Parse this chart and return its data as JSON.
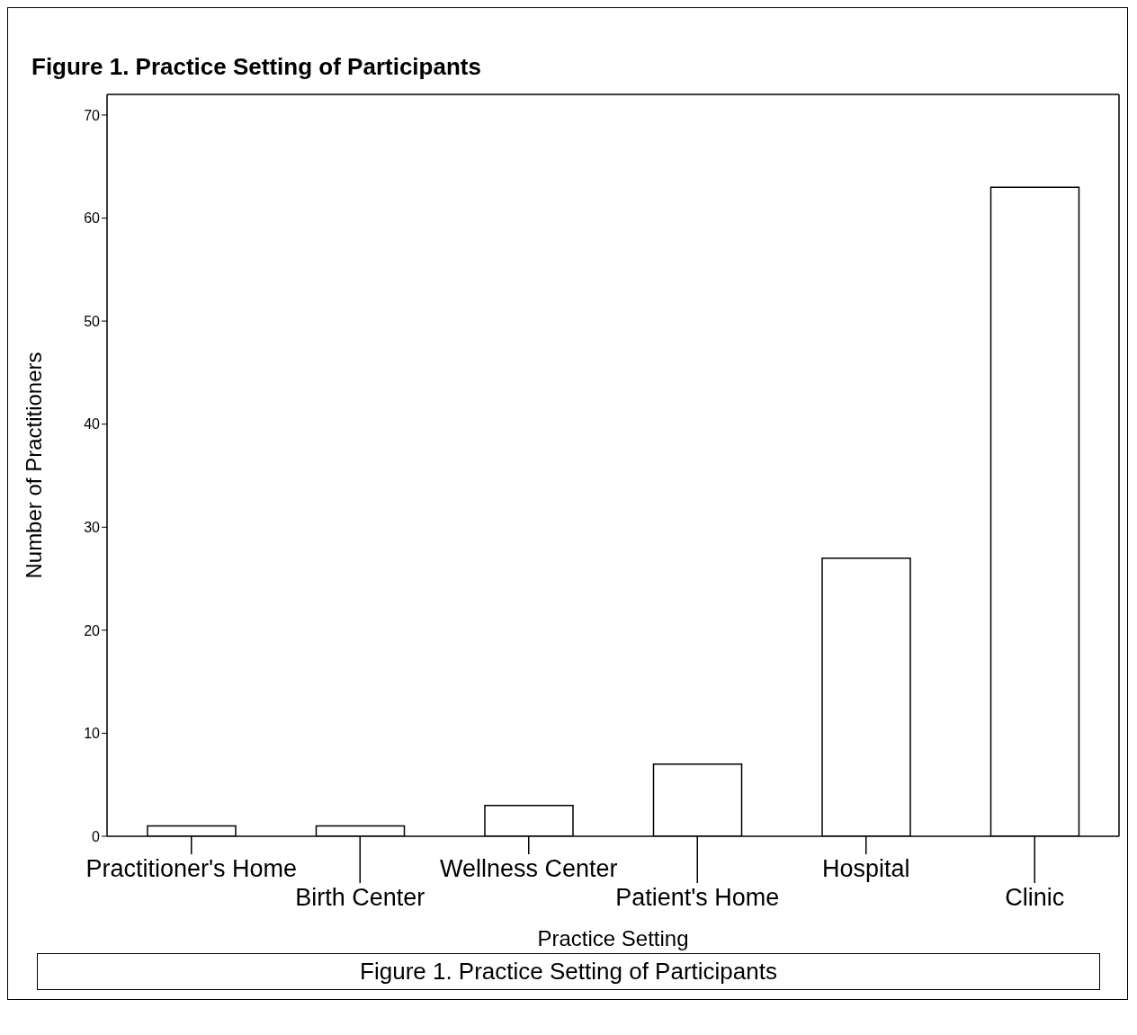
{
  "chart_data": {
    "type": "bar",
    "title": "Figure 1. Practice Setting of Participants",
    "xlabel": "Practice Setting",
    "ylabel": "Number of Practitioners",
    "categories": [
      "Practitioner's Home",
      "Birth Center",
      "Wellness Center",
      "Patient's Home",
      "Hospital",
      "Clinic"
    ],
    "values": [
      1,
      1,
      3,
      7,
      27,
      63
    ],
    "color": "#ffffff",
    "ylim": [
      0,
      72
    ],
    "yticks": [
      0,
      10,
      20,
      30,
      40,
      50,
      60,
      70
    ],
    "annotations": [
      "Figure 1. Practice Setting of Participants"
    ]
  }
}
